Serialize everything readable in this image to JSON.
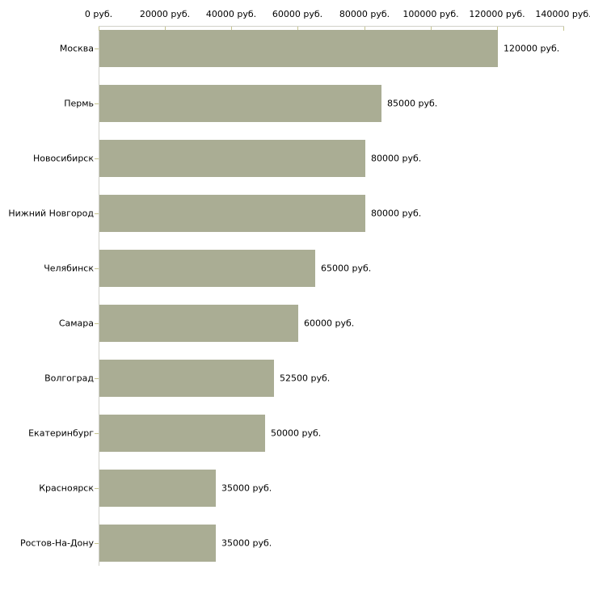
{
  "chart_data": {
    "type": "bar",
    "orientation": "horizontal",
    "title": "",
    "xlabel": "",
    "ylabel": "",
    "categories": [
      "Москва",
      "Пермь",
      "Новосибирск",
      "Нижний Новгород",
      "Челябинск",
      "Самара",
      "Волгоград",
      "Екатеринбург",
      "Красноярск",
      "Ростов-На-Дону"
    ],
    "values": [
      120000,
      85000,
      80000,
      80000,
      65000,
      60000,
      52500,
      50000,
      35000,
      35000
    ],
    "value_labels": [
      "120000 руб.",
      "85000 руб.",
      "80000 руб.",
      "80000 руб.",
      "65000 руб.",
      "60000 руб.",
      "52500 руб.",
      "50000 руб.",
      "35000 руб.",
      "35000 руб."
    ],
    "x_axis": {
      "position": "top",
      "range": [
        0,
        140000
      ],
      "ticks": [
        0,
        20000,
        40000,
        60000,
        80000,
        100000,
        120000,
        140000
      ],
      "tick_labels": [
        "0 руб.",
        "20000 руб.",
        "40000 руб.",
        "60000 руб.",
        "80000 руб.",
        "100000 руб.",
        "120000 руб.",
        "140000 руб."
      ]
    },
    "grid": false,
    "legend": false,
    "colors": {
      "bar": "#aaad94",
      "axis_line": "#d0d0c8",
      "tick": "#c5c38e",
      "text": "#000000",
      "background": "#ffffff"
    }
  }
}
